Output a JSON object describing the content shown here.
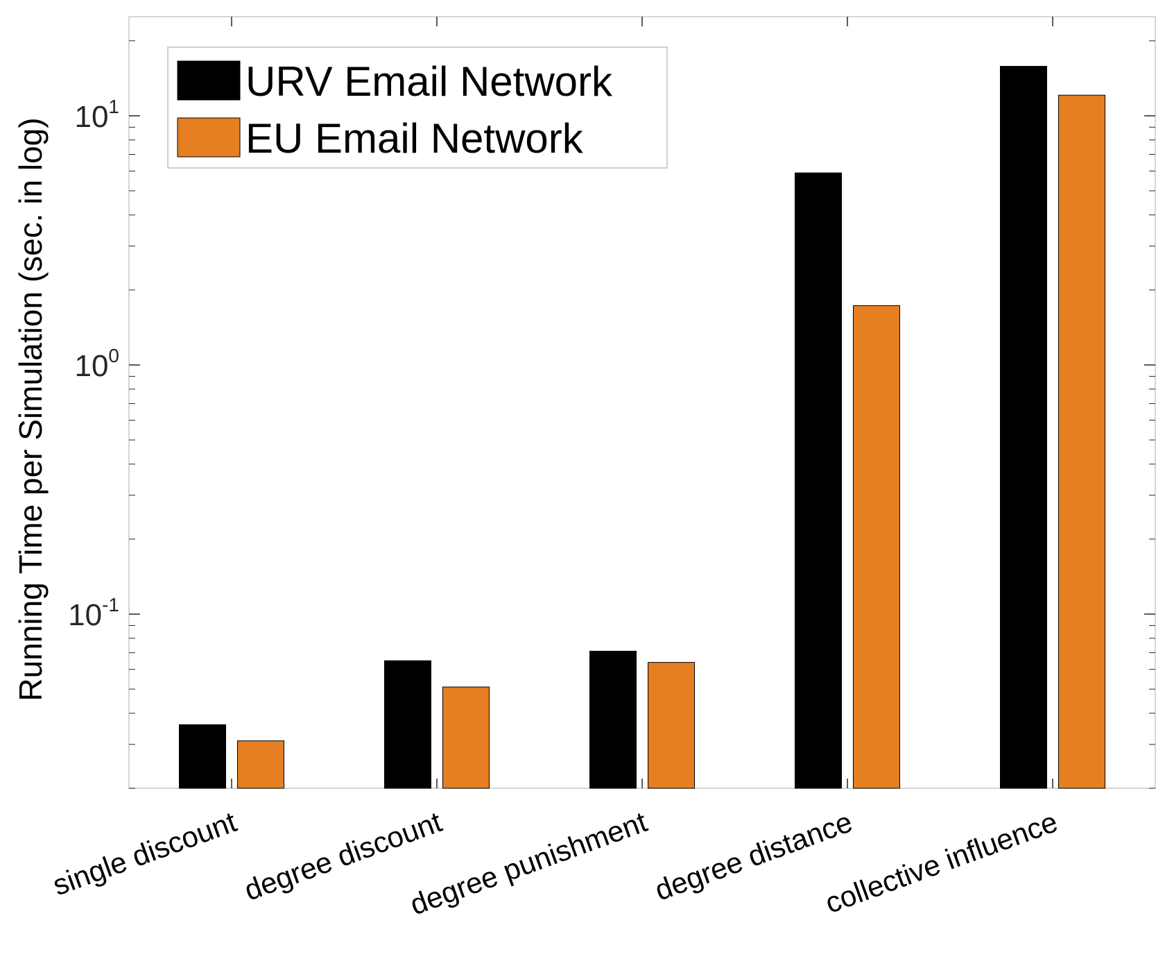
{
  "chart_data": {
    "type": "bar",
    "scale": "log",
    "ylabel": "Running Time per Simulation (sec. in log)",
    "xlabel": "",
    "title": "",
    "ylim": [
      0.02,
      25
    ],
    "yticks": [
      {
        "value": 0.1,
        "base": "10",
        "exp": "-1"
      },
      {
        "value": 1,
        "base": "10",
        "exp": "0"
      },
      {
        "value": 10,
        "base": "10",
        "exp": "1"
      }
    ],
    "categories": [
      "single discount",
      "degree discount",
      "degree punishment",
      "degree distance",
      "collective influence"
    ],
    "series": [
      {
        "name": "URV Email Network",
        "color": "#000000",
        "values": [
          0.036,
          0.065,
          0.071,
          5.9,
          15.8
        ]
      },
      {
        "name": "EU Email Network",
        "color": "#E67E22",
        "values": [
          0.031,
          0.051,
          0.064,
          1.73,
          12.1
        ]
      }
    ],
    "legend_position": "top-left",
    "grid": false
  }
}
